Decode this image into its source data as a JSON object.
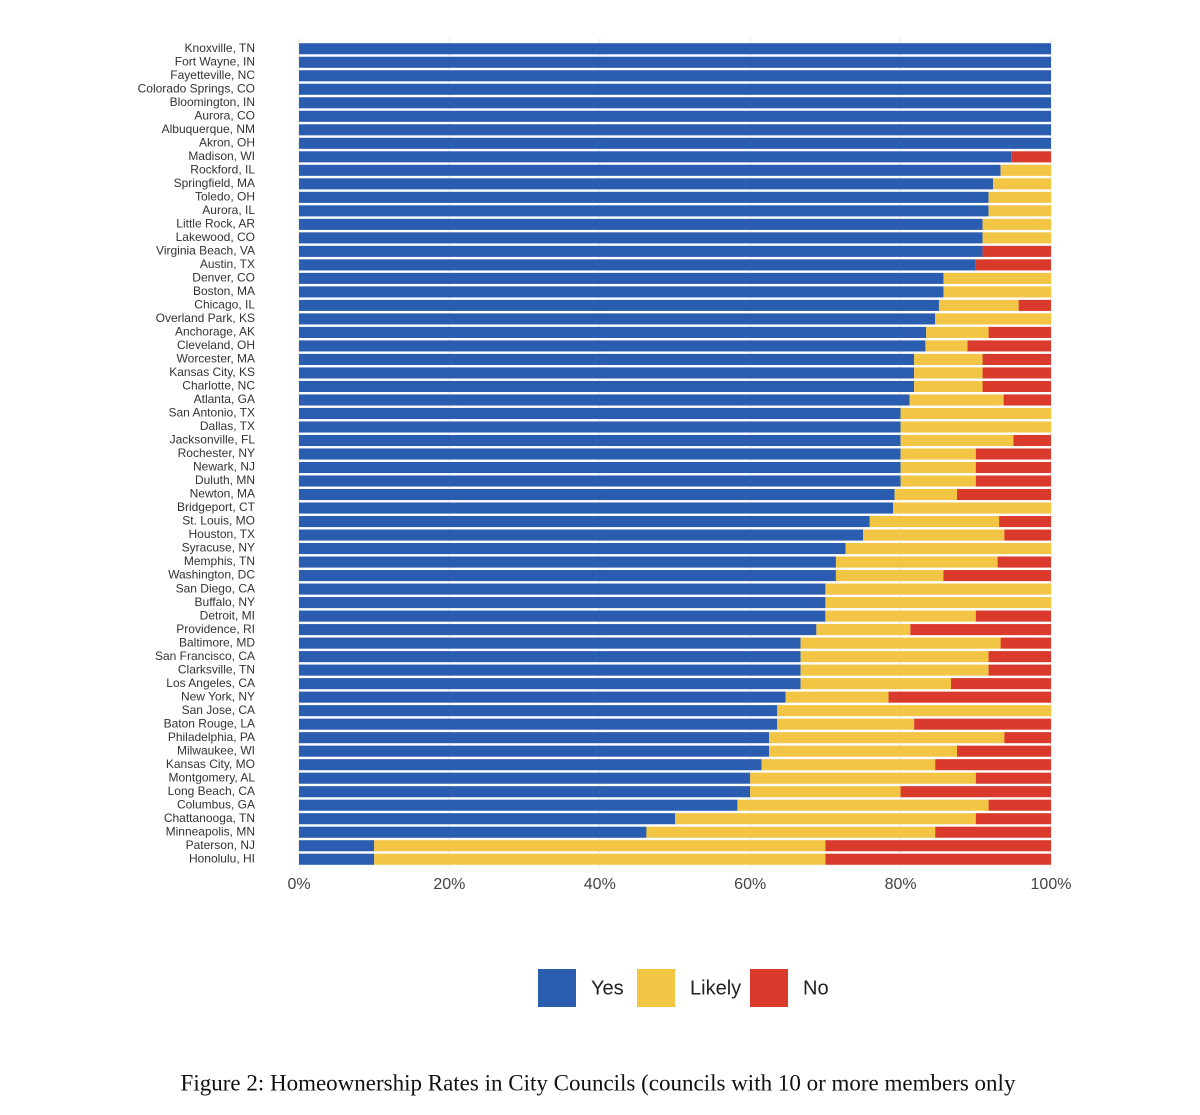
{
  "chart_data": {
    "type": "bar",
    "orientation": "horizontal",
    "stacked": true,
    "caption": "Figure 2: Homeownership Rates in City Councils (councils with 10 or more members only",
    "categories": [
      "Knoxville, TN",
      "Fort Wayne, IN",
      "Fayetteville, NC",
      "Colorado Springs, CO",
      "Bloomington, IN",
      "Aurora, CO",
      "Albuquerque, NM",
      "Akron, OH",
      "Madison, WI",
      "Rockford, IL",
      "Springfield, MA",
      "Toledo, OH",
      "Aurora, IL",
      "Little Rock, AR",
      "Lakewood, CO",
      "Virginia Beach, VA",
      "Austin, TX",
      "Denver, CO",
      "Boston, MA",
      "Chicago, IL",
      "Overland Park, KS",
      "Anchorage, AK",
      "Cleveland, OH",
      "Worcester, MA",
      "Kansas City, KS",
      "Charlotte, NC",
      "Atlanta, GA",
      "San Antonio, TX",
      "Dallas, TX",
      "Jacksonville, FL",
      "Rochester, NY",
      "Newark, NJ",
      "Duluth, MN",
      "Newton, MA",
      "Bridgeport, CT",
      "St. Louis, MO",
      "Houston, TX",
      "Syracuse, NY",
      "Memphis, TN",
      "Washington, DC",
      "San Diego, CA",
      "Buffalo, NY",
      "Detroit, MI",
      "Providence, RI",
      "Baltimore, MD",
      "San Francisco, CA",
      "Clarksville, TN",
      "Los Angeles, CA",
      "New York, NY",
      "San Jose, CA",
      "Baton Rouge, LA",
      "Philadelphia, PA",
      "Milwaukee, WI",
      "Kansas City, MO",
      "Montgomery, AL",
      "Long Beach, CA",
      "Columbus, GA",
      "Chattanooga, TN",
      "Minneapolis, MN",
      "Paterson, NJ",
      "Honolulu, HI"
    ],
    "series": [
      {
        "name": "Yes",
        "color": "#2a5db0",
        "values": [
          100,
          100,
          100,
          100,
          100,
          100,
          100,
          100,
          94.7,
          93.3,
          92.3,
          91.7,
          91.7,
          90.9,
          90.9,
          90.9,
          90,
          85.7,
          85.7,
          85.1,
          84.6,
          83.4,
          83.3,
          81.8,
          81.8,
          81.8,
          81.2,
          80,
          80,
          80,
          80,
          80,
          80,
          79.2,
          79,
          75.9,
          75,
          72.7,
          71.4,
          71.4,
          70,
          70,
          70,
          68.8,
          66.7,
          66.7,
          66.7,
          66.7,
          64.7,
          63.6,
          63.6,
          62.5,
          62.5,
          61.5,
          60,
          60,
          58.3,
          50,
          46.2,
          10,
          10
        ]
      },
      {
        "name": "Likely",
        "color": "#f2c544",
        "values": [
          0,
          0,
          0,
          0,
          0,
          0,
          0,
          0,
          0,
          6.7,
          7.7,
          8.3,
          8.3,
          9.1,
          9.1,
          0,
          0,
          14.3,
          14.3,
          10.6,
          15.4,
          8.3,
          5.6,
          9.1,
          9.1,
          9.1,
          12.5,
          20,
          20,
          15,
          10,
          10,
          10,
          8.3,
          21,
          17.2,
          18.8,
          27.3,
          21.5,
          14.3,
          30,
          30,
          20,
          12.5,
          26.6,
          25,
          25,
          20,
          13.7,
          36.4,
          18.2,
          31.3,
          25,
          23.1,
          30,
          20,
          33.4,
          40,
          38.4,
          60,
          60
        ]
      },
      {
        "name": "No",
        "color": "#d93a2b",
        "values": [
          0,
          0,
          0,
          0,
          0,
          0,
          0,
          0,
          5.3,
          0,
          0,
          0,
          0,
          0,
          0,
          9.1,
          10,
          0,
          0,
          4.3,
          0,
          8.3,
          11.1,
          9.1,
          9.1,
          9.1,
          6.3,
          0,
          0,
          5,
          10,
          10,
          10,
          12.5,
          0,
          6.9,
          6.2,
          0,
          7.1,
          14.3,
          0,
          0,
          10,
          18.7,
          6.7,
          8.3,
          8.3,
          13.3,
          21.6,
          0,
          18.2,
          6.2,
          12.5,
          15.4,
          10,
          20,
          8.3,
          10,
          15.4,
          30,
          30
        ]
      }
    ],
    "xlim": [
      0,
      100
    ],
    "xticks": [
      {
        "value": 0,
        "label": "0%"
      },
      {
        "value": 20,
        "label": "20%"
      },
      {
        "value": 40,
        "label": "40%"
      },
      {
        "value": 60,
        "label": "60%"
      },
      {
        "value": 80,
        "label": "80%"
      },
      {
        "value": 100,
        "label": "100%"
      }
    ],
    "grid": true,
    "legend": "bottom"
  }
}
